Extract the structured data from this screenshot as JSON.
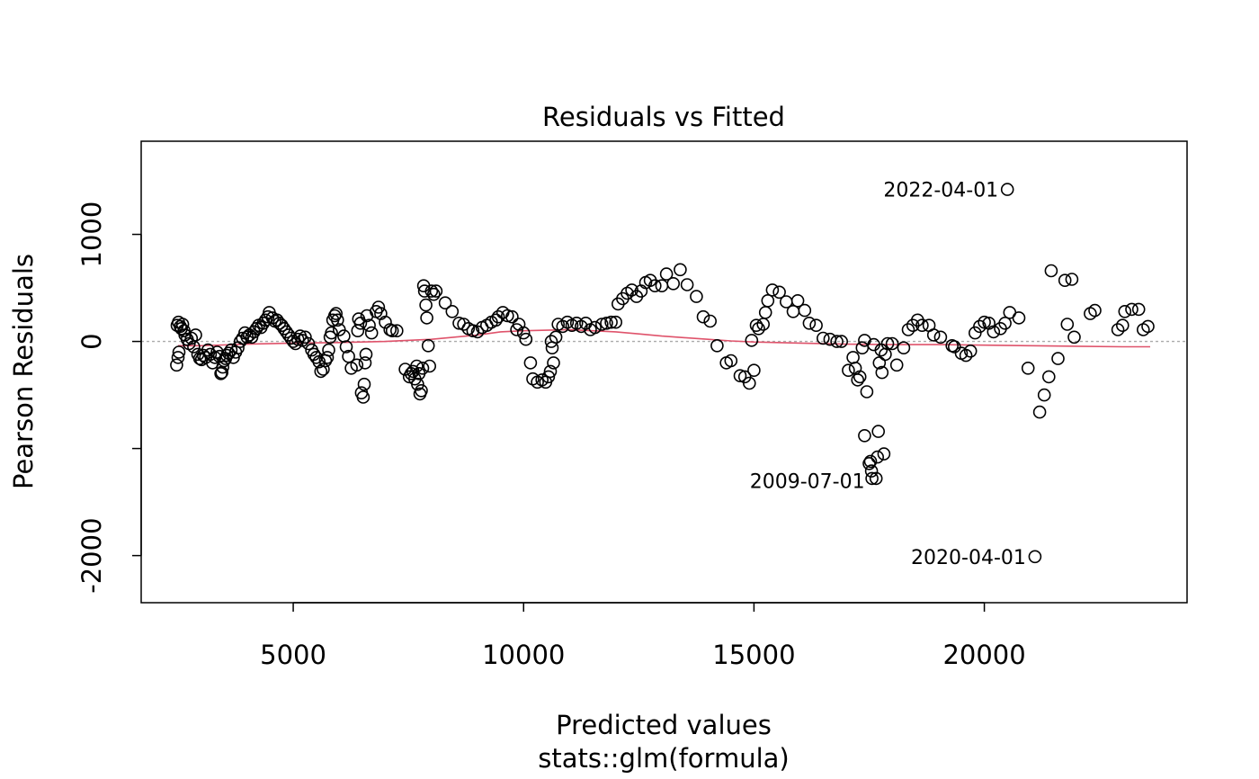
{
  "chart_data": {
    "type": "scatter",
    "title": "Residuals vs Fitted",
    "xlabel": "Predicted values",
    "xlabel2": "stats::glm(formula)",
    "ylabel": "Pearson Residuals",
    "xlim": [
      1700,
      24400
    ],
    "ylim": [
      -2440,
      1870
    ],
    "xticks": [
      {
        "value": 5000,
        "label": "5000"
      },
      {
        "value": 10000,
        "label": "10000"
      },
      {
        "value": 15000,
        "label": "15000"
      },
      {
        "value": 20000,
        "label": "20000"
      }
    ],
    "yticks": [
      {
        "value": 1000,
        "label": "1000"
      },
      {
        "value": 0,
        "label": "0"
      },
      {
        "value": -1000,
        "label": ""
      },
      {
        "value": -2000,
        "label": "-2000"
      }
    ],
    "reference_line": {
      "y": 0,
      "color": "#aaaaaa",
      "style": "dotted"
    },
    "smooth_color": "#df536b",
    "point_color": "#000000",
    "grid": false,
    "legend": "none",
    "annotations": [
      {
        "text": "2022-04-01",
        "x": 20500,
        "y": 1420
      },
      {
        "text": "2009-07-01",
        "x": 17600,
        "y": -1300
      },
      {
        "text": "2020-04-01",
        "x": 21100,
        "y": -2010
      }
    ],
    "points": [
      [
        2470,
        -220
      ],
      [
        2500,
        -150
      ],
      [
        2520,
        -100
      ],
      [
        2480,
        150
      ],
      [
        2510,
        180
      ],
      [
        2550,
        140
      ],
      [
        2570,
        120
      ],
      [
        2600,
        160
      ],
      [
        2630,
        100
      ],
      [
        2650,
        60
      ],
      [
        2700,
        20
      ],
      [
        2740,
        -20
      ],
      [
        2790,
        30
      ],
      [
        2840,
        -50
      ],
      [
        2880,
        60
      ],
      [
        2930,
        -120
      ],
      [
        2970,
        -160
      ],
      [
        3010,
        -170
      ],
      [
        3050,
        -130
      ],
      [
        3100,
        -150
      ],
      [
        3150,
        -80
      ],
      [
        3200,
        -120
      ],
      [
        3250,
        -200
      ],
      [
        3300,
        -150
      ],
      [
        3350,
        -100
      ],
      [
        3400,
        -140
      ],
      [
        3430,
        -300
      ],
      [
        3450,
        -290
      ],
      [
        3470,
        -240
      ],
      [
        3500,
        -180
      ],
      [
        3530,
        -160
      ],
      [
        3560,
        -130
      ],
      [
        3600,
        -110
      ],
      [
        3650,
        -80
      ],
      [
        3700,
        -150
      ],
      [
        3750,
        -100
      ],
      [
        3800,
        -60
      ],
      [
        3850,
        0
      ],
      [
        3900,
        30
      ],
      [
        3950,
        80
      ],
      [
        4000,
        40
      ],
      [
        4050,
        60
      ],
      [
        4100,
        40
      ],
      [
        4150,
        90
      ],
      [
        4200,
        120
      ],
      [
        4250,
        150
      ],
      [
        4300,
        130
      ],
      [
        4350,
        170
      ],
      [
        4400,
        200
      ],
      [
        4450,
        230
      ],
      [
        4480,
        270
      ],
      [
        4550,
        220
      ],
      [
        4600,
        190
      ],
      [
        4650,
        200
      ],
      [
        4700,
        170
      ],
      [
        4750,
        150
      ],
      [
        4800,
        120
      ],
      [
        4850,
        90
      ],
      [
        4900,
        60
      ],
      [
        4950,
        30
      ],
      [
        5000,
        0
      ],
      [
        5050,
        -20
      ],
      [
        5100,
        20
      ],
      [
        5150,
        50
      ],
      [
        5200,
        10
      ],
      [
        5260,
        40
      ],
      [
        5330,
        -20
      ],
      [
        5400,
        -80
      ],
      [
        5450,
        -120
      ],
      [
        5500,
        -150
      ],
      [
        5560,
        -190
      ],
      [
        5600,
        -280
      ],
      [
        5650,
        -260
      ],
      [
        5700,
        -180
      ],
      [
        5740,
        -150
      ],
      [
        5770,
        -80
      ],
      [
        5800,
        40
      ],
      [
        5830,
        80
      ],
      [
        5860,
        200
      ],
      [
        5900,
        240
      ],
      [
        5930,
        260
      ],
      [
        5960,
        200
      ],
      [
        6000,
        110
      ],
      [
        6100,
        50
      ],
      [
        6150,
        -50
      ],
      [
        6200,
        -140
      ],
      [
        6260,
        -250
      ],
      [
        6380,
        -220
      ],
      [
        6400,
        100
      ],
      [
        6420,
        210
      ],
      [
        6460,
        170
      ],
      [
        6480,
        -480
      ],
      [
        6520,
        -520
      ],
      [
        6540,
        -400
      ],
      [
        6560,
        -200
      ],
      [
        6580,
        -120
      ],
      [
        6600,
        240
      ],
      [
        6650,
        150
      ],
      [
        6700,
        80
      ],
      [
        6800,
        280
      ],
      [
        6850,
        320
      ],
      [
        6900,
        260
      ],
      [
        7000,
        180
      ],
      [
        7100,
        110
      ],
      [
        7150,
        100
      ],
      [
        7250,
        100
      ],
      [
        7430,
        -260
      ],
      [
        7520,
        -330
      ],
      [
        7560,
        -300
      ],
      [
        7600,
        -280
      ],
      [
        7640,
        -350
      ],
      [
        7680,
        -230
      ],
      [
        7700,
        -400
      ],
      [
        7730,
        -300
      ],
      [
        7750,
        -490
      ],
      [
        7780,
        -460
      ],
      [
        7810,
        -250
      ],
      [
        7830,
        520
      ],
      [
        7850,
        470
      ],
      [
        7880,
        340
      ],
      [
        7900,
        220
      ],
      [
        7930,
        -40
      ],
      [
        7960,
        -230
      ],
      [
        8000,
        470
      ],
      [
        8050,
        440
      ],
      [
        8100,
        470
      ],
      [
        8300,
        360
      ],
      [
        8450,
        280
      ],
      [
        8600,
        170
      ],
      [
        8700,
        160
      ],
      [
        8800,
        120
      ],
      [
        8900,
        100
      ],
      [
        9000,
        90
      ],
      [
        9100,
        130
      ],
      [
        9200,
        150
      ],
      [
        9300,
        180
      ],
      [
        9400,
        200
      ],
      [
        9450,
        230
      ],
      [
        9550,
        270
      ],
      [
        9650,
        240
      ],
      [
        9750,
        230
      ],
      [
        9850,
        110
      ],
      [
        9900,
        160
      ],
      [
        10000,
        80
      ],
      [
        10050,
        20
      ],
      [
        10150,
        -200
      ],
      [
        10200,
        -350
      ],
      [
        10300,
        -380
      ],
      [
        10400,
        -360
      ],
      [
        10480,
        -380
      ],
      [
        10540,
        -330
      ],
      [
        10580,
        -280
      ],
      [
        10600,
        0
      ],
      [
        10620,
        -60
      ],
      [
        10650,
        -200
      ],
      [
        10700,
        40
      ],
      [
        10750,
        160
      ],
      [
        10850,
        140
      ],
      [
        10950,
        180
      ],
      [
        11050,
        150
      ],
      [
        11150,
        170
      ],
      [
        11250,
        140
      ],
      [
        11350,
        170
      ],
      [
        11450,
        110
      ],
      [
        11550,
        130
      ],
      [
        11700,
        160
      ],
      [
        11800,
        170
      ],
      [
        11900,
        180
      ],
      [
        12000,
        180
      ],
      [
        12050,
        350
      ],
      [
        12150,
        400
      ],
      [
        12250,
        450
      ],
      [
        12350,
        480
      ],
      [
        12450,
        420
      ],
      [
        12550,
        470
      ],
      [
        12650,
        550
      ],
      [
        12750,
        570
      ],
      [
        12850,
        520
      ],
      [
        13000,
        520
      ],
      [
        13100,
        630
      ],
      [
        13250,
        540
      ],
      [
        13400,
        670
      ],
      [
        13550,
        530
      ],
      [
        13750,
        420
      ],
      [
        13900,
        230
      ],
      [
        14050,
        190
      ],
      [
        14200,
        -40
      ],
      [
        14400,
        -200
      ],
      [
        14500,
        -180
      ],
      [
        14700,
        -320
      ],
      [
        14800,
        -330
      ],
      [
        14900,
        -390
      ],
      [
        14950,
        10
      ],
      [
        15000,
        -270
      ],
      [
        15050,
        150
      ],
      [
        15100,
        120
      ],
      [
        15200,
        160
      ],
      [
        15250,
        270
      ],
      [
        15300,
        380
      ],
      [
        15400,
        480
      ],
      [
        15550,
        460
      ],
      [
        15700,
        370
      ],
      [
        15850,
        280
      ],
      [
        15950,
        380
      ],
      [
        16100,
        290
      ],
      [
        16200,
        170
      ],
      [
        16350,
        150
      ],
      [
        16500,
        30
      ],
      [
        16650,
        20
      ],
      [
        16800,
        0
      ],
      [
        16900,
        0
      ],
      [
        17050,
        -270
      ],
      [
        17150,
        -150
      ],
      [
        17200,
        -250
      ],
      [
        17250,
        -360
      ],
      [
        17300,
        -330
      ],
      [
        17350,
        -60
      ],
      [
        17400,
        10
      ],
      [
        17450,
        -470
      ],
      [
        17500,
        -1140
      ],
      [
        17530,
        -1120
      ],
      [
        17560,
        -1280
      ],
      [
        17600,
        -30
      ],
      [
        17650,
        -1280
      ],
      [
        17680,
        -1080
      ],
      [
        17700,
        -840
      ],
      [
        17720,
        -200
      ],
      [
        17760,
        -80
      ],
      [
        17780,
        -290
      ],
      [
        17820,
        -1050
      ],
      [
        17850,
        -120
      ],
      [
        17900,
        -20
      ],
      [
        18000,
        -20
      ],
      [
        18100,
        -220
      ],
      [
        18250,
        -60
      ],
      [
        18350,
        110
      ],
      [
        18450,
        150
      ],
      [
        18550,
        200
      ],
      [
        18650,
        150
      ],
      [
        18800,
        150
      ],
      [
        18900,
        60
      ],
      [
        19050,
        40
      ],
      [
        19300,
        -40
      ],
      [
        19350,
        -50
      ],
      [
        19500,
        -110
      ],
      [
        19600,
        -130
      ],
      [
        19700,
        -90
      ],
      [
        19800,
        80
      ],
      [
        19900,
        140
      ],
      [
        20000,
        180
      ],
      [
        20100,
        170
      ],
      [
        20200,
        90
      ],
      [
        20350,
        120
      ],
      [
        20450,
        170
      ],
      [
        20550,
        270
      ],
      [
        20750,
        220
      ],
      [
        20950,
        -250
      ],
      [
        21200,
        -660
      ],
      [
        21300,
        -500
      ],
      [
        21400,
        -330
      ],
      [
        21450,
        660
      ],
      [
        21600,
        -160
      ],
      [
        21750,
        570
      ],
      [
        21800,
        160
      ],
      [
        21900,
        580
      ],
      [
        21950,
        40
      ],
      [
        22300,
        260
      ],
      [
        22400,
        290
      ],
      [
        22900,
        110
      ],
      [
        23000,
        150
      ],
      [
        23050,
        280
      ],
      [
        23200,
        300
      ],
      [
        23350,
        300
      ],
      [
        23450,
        110
      ],
      [
        23550,
        140
      ],
      [
        17400,
        -880
      ],
      [
        17550,
        -1210
      ],
      [
        20500,
        1420
      ],
      [
        21100,
        -2010
      ]
    ],
    "smooth": [
      [
        2500,
        -40
      ],
      [
        3000,
        -40
      ],
      [
        4000,
        -25
      ],
      [
        5000,
        -15
      ],
      [
        6000,
        -10
      ],
      [
        7000,
        0
      ],
      [
        8000,
        20
      ],
      [
        8500,
        40
      ],
      [
        9000,
        60
      ],
      [
        9500,
        90
      ],
      [
        10000,
        100
      ],
      [
        10500,
        105
      ],
      [
        11000,
        110
      ],
      [
        11500,
        100
      ],
      [
        12000,
        90
      ],
      [
        12500,
        70
      ],
      [
        13000,
        50
      ],
      [
        13500,
        35
      ],
      [
        14000,
        20
      ],
      [
        14500,
        5
      ],
      [
        15000,
        -5
      ],
      [
        16000,
        -15
      ],
      [
        17000,
        -25
      ],
      [
        18000,
        -30
      ],
      [
        19000,
        -30
      ],
      [
        20000,
        -35
      ],
      [
        21000,
        -40
      ],
      [
        22000,
        -45
      ],
      [
        23000,
        -50
      ],
      [
        23600,
        -50
      ]
    ]
  }
}
